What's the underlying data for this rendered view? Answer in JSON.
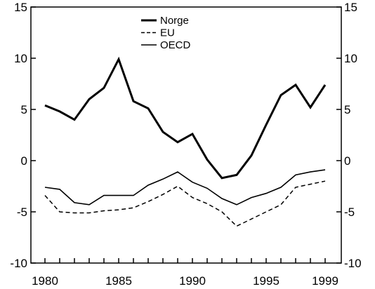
{
  "chart_data": {
    "type": "line",
    "x": [
      1980,
      1981,
      1982,
      1983,
      1984,
      1985,
      1986,
      1987,
      1988,
      1989,
      1990,
      1991,
      1992,
      1993,
      1994,
      1995,
      1996,
      1997,
      1998,
      1999
    ],
    "series": [
      {
        "name": "Norge",
        "style": "thick",
        "color": "#000000",
        "values": [
          5.4,
          4.8,
          4.0,
          6.0,
          7.1,
          9.9,
          5.8,
          5.1,
          2.8,
          1.8,
          2.6,
          0.1,
          -1.7,
          -1.4,
          0.5,
          3.5,
          6.4,
          7.4,
          5.2,
          7.4
        ]
      },
      {
        "name": "EU",
        "style": "dashed",
        "color": "#000000",
        "values": [
          -3.4,
          -5.0,
          -5.1,
          -5.1,
          -4.9,
          -4.8,
          -4.6,
          -4.0,
          -3.3,
          -2.5,
          -3.6,
          -4.2,
          -5.0,
          -6.4,
          -5.7,
          -5.0,
          -4.3,
          -2.6,
          -2.3,
          -2.0
        ]
      },
      {
        "name": "OECD",
        "style": "thin",
        "color": "#000000",
        "values": [
          -2.6,
          -2.8,
          -4.1,
          -4.3,
          -3.4,
          -3.4,
          -3.4,
          -2.4,
          -1.8,
          -1.1,
          -2.1,
          -2.7,
          -3.7,
          -4.3,
          -3.6,
          -3.2,
          -2.6,
          -1.4,
          -1.1,
          -0.9
        ]
      }
    ],
    "ylim": [
      -10,
      15
    ],
    "xlim": [
      1980,
      1999
    ],
    "y_ticks": [
      "15",
      "10",
      "5",
      "0",
      "-5",
      "-10"
    ],
    "y_tick_values": [
      15,
      10,
      5,
      0,
      -5,
      -10
    ],
    "x_ticks": [
      "1980",
      "1985",
      "1990",
      "1995",
      "1999"
    ],
    "x_tick_values": [
      1980,
      1985,
      1990,
      1995,
      1999
    ],
    "grid": false,
    "legend_position": "top-center",
    "title": "",
    "xlabel": "",
    "ylabel": ""
  }
}
